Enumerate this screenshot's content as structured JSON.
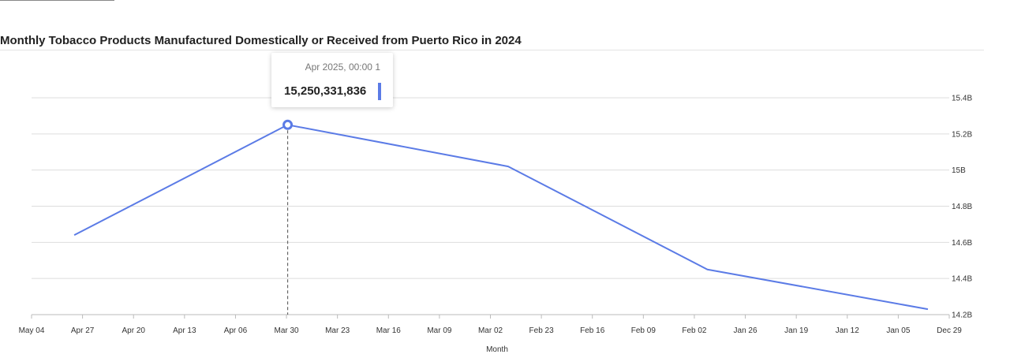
{
  "chart_data": {
    "type": "line",
    "title": "Monthly Tobacco Products Manufactured Domestically or Received from Puerto Rico in 2024",
    "xlabel": "Month",
    "ylabel": "",
    "x_tick_labels": [
      "May 04",
      "Apr 27",
      "Apr 20",
      "Apr 13",
      "Apr 06",
      "Mar 30",
      "Mar 23",
      "Mar 16",
      "Mar 09",
      "Mar 02",
      "Feb 23",
      "Feb 16",
      "Feb 09",
      "Feb 02",
      "Jan 26",
      "Jan 19",
      "Jan 12",
      "Jan 05",
      "Dec 29"
    ],
    "y_tick_labels": [
      "14.2B",
      "14.4B",
      "14.6B",
      "14.8B",
      "15B",
      "15.2B",
      "15.4B"
    ],
    "y_ticks": [
      14200000000,
      14400000000,
      14600000000,
      14800000000,
      15000000000,
      15200000000,
      15400000000
    ],
    "ylim": [
      14200000000,
      15400000000
    ],
    "x_reversed": true,
    "x_range": [
      "2025-05-07",
      "2024-12-29"
    ],
    "y_axis_position": "right",
    "grid": true,
    "series": [
      {
        "color": "#5b7be6",
        "x": [
          "2025-05-01",
          "2025-04-01",
          "2025-03-01",
          "2025-02-01",
          "2025-01-01"
        ],
        "values": [
          14640000000,
          15250331836,
          15020000000,
          14450000000,
          14230000000
        ]
      }
    ],
    "tooltip": {
      "date": "Apr 2025, 00:00 1",
      "value": "15,250,331,836",
      "point_index": 1
    }
  },
  "colors": {
    "series": "#5b7be6",
    "grid": "#dddddd",
    "axis": "#bbbbbb",
    "crosshair": "#666666"
  }
}
